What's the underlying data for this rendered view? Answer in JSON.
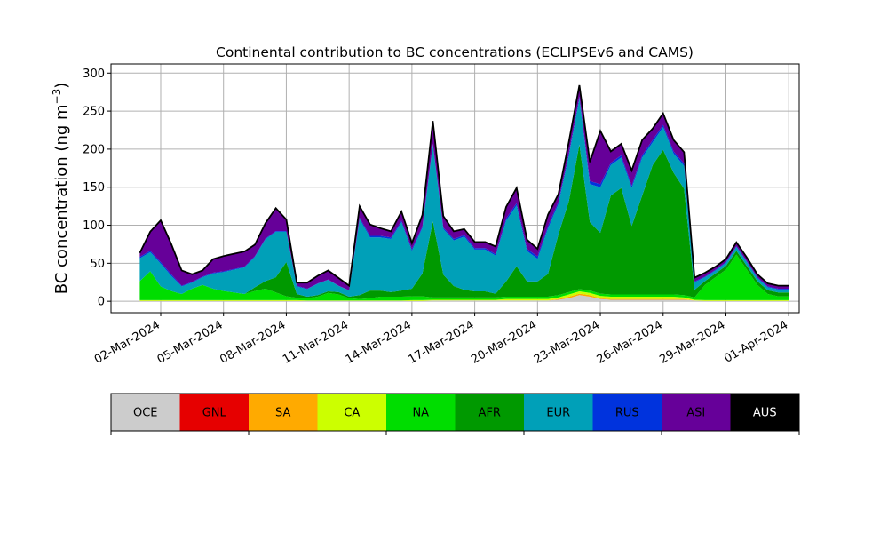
{
  "chart_data": {
    "type": "area",
    "stacked": true,
    "title": "Continental contribution to BC concentrations (ECLIPSEv6 and CAMS)",
    "ylabel": "BC concentration (ng m",
    "ylabel_sup": "−3",
    "ylabel_close": ")",
    "xlabel": "",
    "grid": true,
    "ylim": [
      -15,
      312
    ],
    "yticks": [
      0,
      50,
      100,
      150,
      200,
      250,
      300
    ],
    "xlim": [
      "2024-02-28T15:00",
      "2024-04-01T12:00"
    ],
    "xticks": [
      {
        "date": "2024-03-02",
        "label": "02-Mar-2024"
      },
      {
        "date": "2024-03-05",
        "label": "05-Mar-2024"
      },
      {
        "date": "2024-03-08",
        "label": "08-Mar-2024"
      },
      {
        "date": "2024-03-11",
        "label": "11-Mar-2024"
      },
      {
        "date": "2024-03-14",
        "label": "14-Mar-2024"
      },
      {
        "date": "2024-03-17",
        "label": "17-Mar-2024"
      },
      {
        "date": "2024-03-20",
        "label": "20-Mar-2024"
      },
      {
        "date": "2024-03-23",
        "label": "23-Mar-2024"
      },
      {
        "date": "2024-03-26",
        "label": "26-Mar-2024"
      },
      {
        "date": "2024-03-29",
        "label": "29-Mar-2024"
      },
      {
        "date": "2024-04-01",
        "label": "01-Apr-2024"
      }
    ],
    "dates": [
      "2024-03-01T00:00",
      "2024-03-01T12:00",
      "2024-03-02T00:00",
      "2024-03-02T12:00",
      "2024-03-03T00:00",
      "2024-03-03T12:00",
      "2024-03-04T00:00",
      "2024-03-04T12:00",
      "2024-03-05T00:00",
      "2024-03-05T12:00",
      "2024-03-06T00:00",
      "2024-03-06T12:00",
      "2024-03-07T00:00",
      "2024-03-07T12:00",
      "2024-03-08T00:00",
      "2024-03-08T12:00",
      "2024-03-09T00:00",
      "2024-03-09T12:00",
      "2024-03-10T00:00",
      "2024-03-10T12:00",
      "2024-03-11T00:00",
      "2024-03-11T12:00",
      "2024-03-12T00:00",
      "2024-03-12T12:00",
      "2024-03-13T00:00",
      "2024-03-13T12:00",
      "2024-03-14T00:00",
      "2024-03-14T12:00",
      "2024-03-15T00:00",
      "2024-03-15T12:00",
      "2024-03-16T00:00",
      "2024-03-16T12:00",
      "2024-03-17T00:00",
      "2024-03-17T12:00",
      "2024-03-18T00:00",
      "2024-03-18T12:00",
      "2024-03-19T00:00",
      "2024-03-19T12:00",
      "2024-03-20T00:00",
      "2024-03-20T12:00",
      "2024-03-21T00:00",
      "2024-03-21T12:00",
      "2024-03-22T00:00",
      "2024-03-22T12:00",
      "2024-03-23T00:00",
      "2024-03-23T12:00",
      "2024-03-24T00:00",
      "2024-03-24T12:00",
      "2024-03-25T00:00",
      "2024-03-25T12:00",
      "2024-03-26T00:00",
      "2024-03-26T12:00",
      "2024-03-27T00:00",
      "2024-03-27T12:00",
      "2024-03-28T00:00",
      "2024-03-28T12:00",
      "2024-03-29T00:00",
      "2024-03-29T12:00",
      "2024-03-30T00:00",
      "2024-03-30T12:00",
      "2024-03-31T00:00",
      "2024-03-31T12:00",
      "2024-04-01T00:00"
    ],
    "series": [
      {
        "name": "OCE",
        "color": "#cccccc",
        "values": [
          0.5,
          0.5,
          0.5,
          0.5,
          0.5,
          0.5,
          0.5,
          0.5,
          0.5,
          0.5,
          0.5,
          0.5,
          0.5,
          0.5,
          0.5,
          0.5,
          0.5,
          0.5,
          0.5,
          0.5,
          0.5,
          0.5,
          0.5,
          0.5,
          0.5,
          0.5,
          0.5,
          0.5,
          1,
          1,
          1,
          1,
          1,
          1,
          1,
          1,
          1,
          1,
          1,
          1,
          2,
          4,
          8,
          6,
          3,
          2,
          2,
          2,
          2,
          2,
          2,
          2,
          2,
          1,
          0.5,
          0.5,
          0.5,
          0.5,
          0.5,
          0.5,
          0.5,
          0.5,
          0.5
        ]
      },
      {
        "name": "GNL",
        "color": "#e60000",
        "values": [
          0,
          0,
          0,
          0,
          0,
          0,
          0,
          0,
          0,
          0,
          0,
          0,
          0,
          0,
          0,
          0,
          0,
          0,
          0,
          0,
          0,
          0,
          0,
          0,
          0,
          0,
          0,
          0,
          0,
          0,
          0,
          0,
          0,
          0,
          0,
          0,
          0,
          0,
          0,
          0,
          0,
          0,
          0,
          0,
          0,
          0,
          0,
          0,
          0,
          0,
          0,
          0,
          0,
          0,
          0,
          0,
          0,
          0,
          0,
          0,
          0,
          0,
          0
        ]
      },
      {
        "name": "SA",
        "color": "#ffaa00",
        "values": [
          0,
          0,
          0,
          0,
          0,
          0,
          0,
          0,
          0,
          0,
          0,
          0,
          0,
          0,
          0,
          0,
          0,
          0,
          0,
          0,
          0,
          0,
          0,
          0,
          0,
          0,
          0,
          0,
          0,
          0,
          0,
          0,
          0,
          0,
          0,
          0,
          0,
          0,
          0,
          0,
          1,
          2,
          2,
          2,
          1,
          1,
          1,
          1,
          1,
          1,
          1,
          1,
          1,
          0,
          0,
          0,
          0,
          0,
          0,
          0,
          0,
          0,
          0
        ]
      },
      {
        "name": "CA",
        "color": "#ccff00",
        "values": [
          1,
          1,
          1,
          1,
          1,
          1,
          1,
          1,
          1,
          1,
          1,
          1,
          1,
          1,
          1,
          1,
          0.5,
          0.5,
          0.5,
          0.5,
          0.5,
          0.5,
          0.5,
          0.5,
          0.5,
          0.5,
          1,
          1,
          1,
          1,
          1,
          1,
          1,
          1,
          1,
          2,
          2,
          2,
          2,
          2,
          2,
          3,
          3,
          3,
          3,
          3,
          3,
          3,
          3,
          3,
          3,
          3,
          2,
          1,
          1,
          1,
          1,
          1,
          1,
          1,
          1,
          1,
          1
        ]
      },
      {
        "name": "NA",
        "color": "#00dd00",
        "values": [
          25,
          38,
          18,
          12,
          8,
          15,
          20,
          15,
          12,
          10,
          8,
          12,
          15,
          10,
          5,
          3,
          3,
          5,
          10,
          8,
          3,
          2,
          3,
          5,
          5,
          5,
          5,
          5,
          3,
          3,
          3,
          3,
          3,
          3,
          3,
          3,
          3,
          3,
          3,
          3,
          3,
          3,
          3,
          3,
          3,
          3,
          3,
          3,
          3,
          3,
          3,
          3,
          3,
          3,
          20,
          30,
          40,
          60,
          40,
          20,
          8,
          5,
          5
        ]
      },
      {
        "name": "AFR",
        "color": "#009900",
        "values": [
          0,
          0,
          0,
          0,
          0,
          0,
          0,
          0,
          0,
          0,
          0,
          5,
          10,
          20,
          45,
          5,
          2,
          2,
          2,
          3,
          2,
          5,
          10,
          8,
          6,
          8,
          10,
          30,
          100,
          30,
          15,
          10,
          8,
          8,
          5,
          20,
          40,
          20,
          20,
          30,
          80,
          120,
          190,
          90,
          80,
          130,
          140,
          90,
          130,
          170,
          190,
          160,
          140,
          10,
          5,
          5,
          5,
          5,
          5,
          5,
          5,
          5,
          5
        ]
      },
      {
        "name": "EUR",
        "color": "#00a0b8",
        "values": [
          30,
          25,
          30,
          20,
          10,
          8,
          10,
          20,
          25,
          30,
          35,
          40,
          55,
          60,
          40,
          10,
          10,
          15,
          15,
          8,
          8,
          100,
          70,
          70,
          70,
          90,
          50,
          60,
          100,
          60,
          60,
          70,
          55,
          55,
          50,
          80,
          80,
          40,
          30,
          60,
          40,
          60,
          60,
          50,
          60,
          40,
          40,
          50,
          50,
          30,
          30,
          25,
          30,
          10,
          5,
          4,
          4,
          5,
          5,
          4,
          4,
          4,
          4
        ]
      },
      {
        "name": "RUS",
        "color": "#0033dd",
        "values": [
          2,
          2,
          2,
          2,
          1,
          1,
          1,
          1,
          1,
          1,
          1,
          1,
          1,
          1,
          1,
          1,
          0.5,
          0.5,
          0.5,
          0.5,
          0.5,
          2,
          2,
          2,
          2,
          2,
          2,
          2,
          2,
          2,
          2,
          2,
          2,
          2,
          2,
          3,
          3,
          3,
          3,
          3,
          3,
          3,
          3,
          4,
          4,
          3,
          3,
          3,
          3,
          3,
          3,
          3,
          3,
          1,
          1,
          1,
          1,
          1,
          1,
          1,
          1,
          1,
          1
        ]
      },
      {
        "name": "ASI",
        "color": "#660099",
        "values": [
          5,
          25,
          55,
          40,
          20,
          10,
          8,
          18,
          20,
          20,
          20,
          15,
          20,
          30,
          15,
          4,
          8,
          10,
          12,
          10,
          6,
          15,
          15,
          10,
          8,
          12,
          8,
          15,
          30,
          15,
          10,
          8,
          8,
          8,
          10,
          15,
          20,
          12,
          10,
          15,
          10,
          15,
          15,
          25,
          70,
          15,
          15,
          20,
          20,
          15,
          15,
          15,
          15,
          5,
          5,
          4,
          4,
          5,
          5,
          4,
          4,
          4,
          4
        ]
      },
      {
        "name": "AUS",
        "color": "#000000",
        "values": [
          0,
          0,
          0,
          0,
          0,
          0,
          0,
          0,
          0,
          0,
          0,
          0,
          0,
          0,
          0,
          0,
          0,
          0,
          0,
          0,
          0,
          0,
          0,
          0,
          0,
          0,
          0,
          0,
          0,
          0,
          0,
          0,
          0,
          0,
          0,
          0,
          0,
          0,
          0,
          0,
          0,
          0,
          0,
          0,
          0,
          0,
          0,
          0,
          0,
          0,
          0,
          0,
          0,
          0,
          0,
          0,
          0,
          0,
          0,
          0,
          0,
          0,
          0
        ]
      }
    ],
    "legend": {
      "placement": "bottom",
      "items": [
        {
          "label": "OCE",
          "color": "#cccccc",
          "text_color": "#000000"
        },
        {
          "label": "GNL",
          "color": "#e60000",
          "text_color": "#000000"
        },
        {
          "label": "SA",
          "color": "#ffaa00",
          "text_color": "#000000"
        },
        {
          "label": "CA",
          "color": "#ccff00",
          "text_color": "#000000"
        },
        {
          "label": "NA",
          "color": "#00dd00",
          "text_color": "#000000"
        },
        {
          "label": "AFR",
          "color": "#009900",
          "text_color": "#000000"
        },
        {
          "label": "EUR",
          "color": "#00a0b8",
          "text_color": "#000000"
        },
        {
          "label": "RUS",
          "color": "#0033dd",
          "text_color": "#000000"
        },
        {
          "label": "ASI",
          "color": "#660099",
          "text_color": "#000000"
        },
        {
          "label": "AUS",
          "color": "#000000",
          "text_color": "#ffffff"
        }
      ]
    }
  }
}
